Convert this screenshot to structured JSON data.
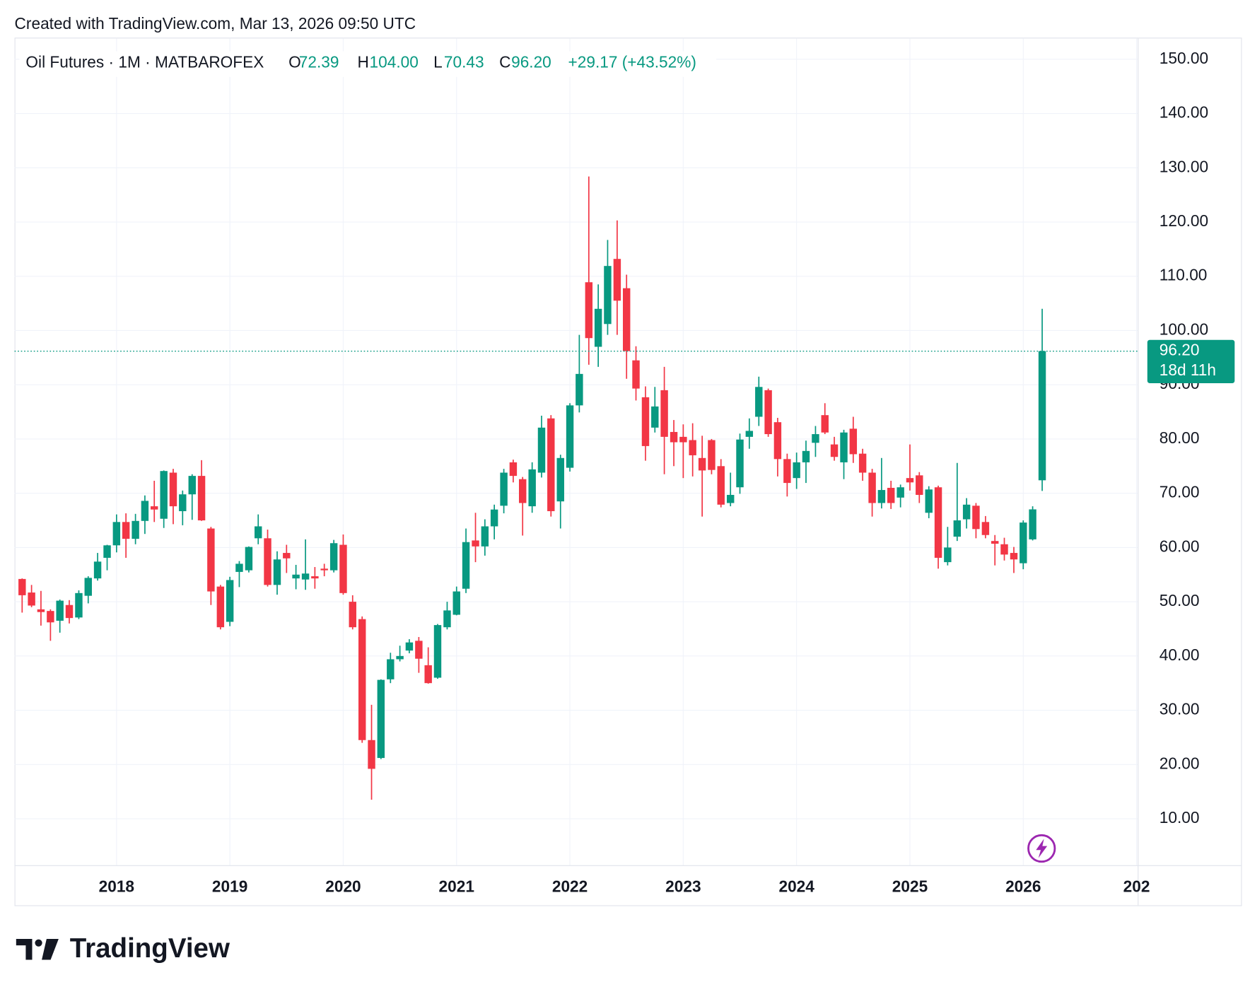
{
  "created": "Created with TradingView.com, Mar 13, 2026 09:50 UTC",
  "brand": "TradingView",
  "chart_data": {
    "type": "candlestick",
    "header": {
      "symbol": "Oil Futures · 1M · MATBAROFEX",
      "o_label": "O",
      "o": "72.39",
      "h_label": "H",
      "h": "104.00",
      "l_label": "L",
      "l": "70.43",
      "c_label": "C",
      "c": "96.20",
      "change": "+29.17 (+43.52%)"
    },
    "price_label": "96.20",
    "countdown": "18d 11h",
    "up_color": "#089981",
    "down_color": "#f23645",
    "grid": true,
    "xlim": [
      2017.1,
      2027.01
    ],
    "ylim": [
      1.43,
      153.84
    ],
    "xticks": [
      2018,
      2019,
      2020,
      2021,
      2022,
      2023,
      2024,
      2025,
      2026,
      {
        "value": 2027,
        "label": "202"
      }
    ],
    "yticks": [
      {
        "value": 10,
        "label": "10.00"
      },
      {
        "value": 20,
        "label": "20.00"
      },
      {
        "value": 30,
        "label": "30.00"
      },
      {
        "value": 40,
        "label": "40.00"
      },
      {
        "value": 50,
        "label": "50.00"
      },
      {
        "value": 60,
        "label": "60.00"
      },
      {
        "value": 70,
        "label": "70.00"
      },
      {
        "value": 80,
        "label": "80.00"
      },
      {
        "value": 90,
        "label": "90.00"
      },
      {
        "value": 100,
        "label": "100.00"
      },
      {
        "value": 110,
        "label": "110.00"
      },
      {
        "value": 120,
        "label": "120.00"
      },
      {
        "value": 130,
        "label": "130.00"
      },
      {
        "value": 140,
        "label": "140.00"
      },
      {
        "value": 150,
        "label": "150.00"
      }
    ],
    "x": [
      2017.167,
      2017.25,
      2017.333,
      2017.417,
      2017.5,
      2017.583,
      2017.667,
      2017.75,
      2017.833,
      2017.917,
      2018.0,
      2018.083,
      2018.167,
      2018.25,
      2018.333,
      2018.417,
      2018.5,
      2018.583,
      2018.667,
      2018.75,
      2018.833,
      2018.917,
      2019.0,
      2019.083,
      2019.167,
      2019.25,
      2019.333,
      2019.417,
      2019.5,
      2019.583,
      2019.667,
      2019.75,
      2019.833,
      2019.917,
      2020.0,
      2020.083,
      2020.167,
      2020.25,
      2020.333,
      2020.417,
      2020.5,
      2020.583,
      2020.667,
      2020.75,
      2020.833,
      2020.917,
      2021.0,
      2021.083,
      2021.167,
      2021.25,
      2021.333,
      2021.417,
      2021.5,
      2021.583,
      2021.667,
      2021.75,
      2021.833,
      2021.917,
      2022.0,
      2022.083,
      2022.167,
      2022.25,
      2022.333,
      2022.417,
      2022.5,
      2022.583,
      2022.667,
      2022.75,
      2022.833,
      2022.917,
      2023.0,
      2023.083,
      2023.167,
      2023.25,
      2023.333,
      2023.417,
      2023.5,
      2023.583,
      2023.667,
      2023.75,
      2023.833,
      2023.917,
      2024.0,
      2024.083,
      2024.167,
      2024.25,
      2024.333,
      2024.417,
      2024.5,
      2024.583,
      2024.667,
      2024.75,
      2024.833,
      2024.917,
      2025.0,
      2025.083,
      2025.167,
      2025.25,
      2025.333,
      2025.417,
      2025.5,
      2025.583,
      2025.667,
      2025.75,
      2025.833,
      2025.917,
      2026.0,
      2026.083,
      2026.167
    ],
    "open": [
      54.2,
      51.7,
      48.6,
      48.3,
      46.5,
      49.4,
      47.1,
      51.1,
      54.3,
      58.1,
      60.4,
      64.7,
      61.6,
      64.9,
      67.6,
      65.3,
      73.8,
      66.7,
      69.8,
      73.2,
      63.5,
      52.8,
      46.3,
      55.5,
      55.8,
      61.7,
      61.7,
      53.1,
      59,
      54.3,
      54.1,
      54.7,
      56.1,
      55.8,
      60.5,
      50,
      46.8,
      24.5,
      21.2,
      35.7,
      39.4,
      41,
      42.8,
      38.3,
      36,
      45.3,
      47.6,
      52.4,
      61.3,
      60.2,
      63.9,
      67.7,
      75.7,
      72.6,
      67.6,
      73.8,
      83.8,
      68.5,
      74.7,
      86.2,
      108.9,
      97,
      101.2,
      113.2,
      107.8,
      94.5,
      87.7,
      82.1,
      89,
      81.3,
      80.4,
      79.8,
      76.5,
      79.8,
      75,
      68.2,
      71.1,
      80.4,
      84.1,
      89,
      83.1,
      76.3,
      72.8,
      75.7,
      79.3,
      84.4,
      79,
      75.7,
      81.9,
      77.3,
      73.8,
      68.2,
      71,
      69.2,
      72.8,
      73.3,
      66.4,
      71.1,
      57.3,
      62,
      65.2,
      67.7,
      64.7,
      61.2,
      60.6,
      59,
      57.1,
      61.5,
      72.39
    ],
    "high": [
      54.3,
      53.1,
      52,
      48.6,
      50.4,
      50.3,
      52.1,
      54.7,
      59,
      60.5,
      66.1,
      66.3,
      66.2,
      69.6,
      72.3,
      74.2,
      74.5,
      70.5,
      73.5,
      76.1,
      63.8,
      53.1,
      54.6,
      57.5,
      60.2,
      66.1,
      63.3,
      59.3,
      60.5,
      56.8,
      61.5,
      56.4,
      57,
      61.4,
      62.4,
      51.2,
      47.3,
      31,
      35.7,
      40.6,
      41.9,
      43.1,
      43.5,
      41.6,
      45.9,
      50,
      52.8,
      63.5,
      66.4,
      65.2,
      67.9,
      74.5,
      76.2,
      73,
      75.7,
      84.3,
      84.4,
      77.1,
      86.6,
      99.2,
      128.4,
      108.5,
      116.7,
      120.3,
      110.3,
      97.1,
      89.7,
      89.6,
      93.3,
      83.5,
      82.7,
      82.9,
      80.6,
      80,
      76.3,
      73.8,
      81,
      83.8,
      91.5,
      89.3,
      83.9,
      77.3,
      77.5,
      79.7,
      82.4,
      86.6,
      80.4,
      81.7,
      84.1,
      78.2,
      74.5,
      76.5,
      72.3,
      71.6,
      79,
      73.9,
      71.3,
      71.4,
      63.8,
      75.6,
      69.1,
      68.2,
      65.8,
      62.3,
      61.8,
      60.1,
      65,
      67.6,
      104
    ],
    "low": [
      48,
      49,
      45.6,
      42.8,
      44.3,
      46,
      46.8,
      49.7,
      53.9,
      55.8,
      59.1,
      58.1,
      60.6,
      62.5,
      64.7,
      63.6,
      64.3,
      64.1,
      65.1,
      64.9,
      49.4,
      44.9,
      45.5,
      52.7,
      55.4,
      60.6,
      52.8,
      51.3,
      55.3,
      52.3,
      52.2,
      52.4,
      54.7,
      55.4,
      51.3,
      44.9,
      24,
      13.5,
      21,
      35,
      39,
      40.5,
      36.9,
      34.9,
      35.8,
      44.9,
      47.5,
      51.6,
      57.3,
      58.5,
      61.5,
      66.3,
      72,
      62.2,
      66.4,
      72.9,
      65.7,
      63.5,
      74,
      84.9,
      93.7,
      93.3,
      99.2,
      99.2,
      91.1,
      87.1,
      76,
      81.2,
      73.5,
      75,
      72.8,
      73.1,
      65.7,
      73.5,
      67.4,
      67.6,
      69.9,
      78.2,
      82.4,
      80.4,
      73.1,
      69.4,
      70.8,
      71.9,
      76.7,
      80.9,
      76,
      72.6,
      75.6,
      72.3,
      65.7,
      67.2,
      67.1,
      67.4,
      70.5,
      68.2,
      65.4,
      56.1,
      56.7,
      61.2,
      63.5,
      61.7,
      61.7,
      56.7,
      57.6,
      55.3,
      56,
      61.3,
      70.43
    ],
    "close": [
      51.2,
      49.3,
      48.1,
      46.2,
      50.2,
      47,
      51.6,
      54.4,
      57.4,
      60.4,
      64.7,
      61.6,
      64.9,
      68.6,
      67,
      74.1,
      67.6,
      69.8,
      73.2,
      65,
      51.9,
      45.3,
      54,
      57,
      60.1,
      63.9,
      53.1,
      57.8,
      58,
      55,
      55.2,
      54.3,
      55.8,
      60.8,
      51.6,
      45.3,
      24.5,
      19.2,
      35.6,
      39.4,
      40,
      42.5,
      39.5,
      35,
      45.7,
      48.4,
      51.9,
      61,
      60.2,
      63.9,
      67,
      73.8,
      73.2,
      68.2,
      74.4,
      82.1,
      66.7,
      76.5,
      86.2,
      92,
      98.6,
      104,
      111.9,
      105.5,
      96.2,
      89.3,
      78.7,
      86,
      80.4,
      79.4,
      79.4,
      77,
      74.2,
      74.3,
      67.9,
      69.7,
      79.9,
      81.5,
      89.6,
      80.9,
      76.3,
      71.9,
      75.7,
      77.8,
      80.9,
      81.2,
      76.7,
      81.2,
      77.2,
      73.8,
      68.2,
      70.6,
      68.2,
      71.1,
      72,
      69.7,
      70.7,
      58.1,
      60,
      65,
      67.9,
      63.4,
      62.3,
      60.7,
      58.7,
      57.8,
      64.6,
      67.03,
      96.2
    ]
  }
}
